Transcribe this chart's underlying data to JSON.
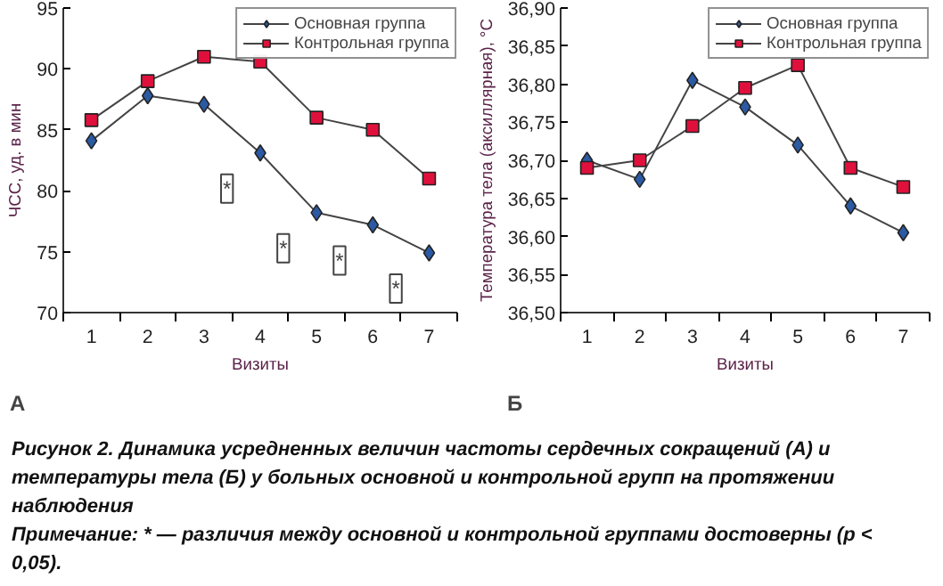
{
  "chart_data": [
    {
      "type": "line",
      "title": "А",
      "xlabel": "Визиты",
      "ylabel": "ЧСС, уд. в мин",
      "categories": [
        "1",
        "2",
        "3",
        "4",
        "5",
        "6",
        "7"
      ],
      "ylim": [
        70,
        95
      ],
      "yticks": [
        70,
        75,
        80,
        85,
        90,
        95
      ],
      "grid": false,
      "legend": "top right",
      "series": [
        {
          "name": "Основная группа",
          "color": "#2b5aa3",
          "marker": "diamond",
          "values": [
            84.1,
            87.8,
            87.1,
            83.1,
            78.2,
            77.2,
            74.9
          ]
        },
        {
          "name": "Контрольная группа",
          "color": "#e0103c",
          "marker": "square",
          "values": [
            85.8,
            89.0,
            91.0,
            90.6,
            86.0,
            85.0,
            81.0
          ]
        }
      ],
      "annotations": [
        {
          "text": "*",
          "x": "4",
          "y": 83.1
        },
        {
          "text": "*",
          "x": "5",
          "y": 78.2
        },
        {
          "text": "*",
          "x": "6",
          "y": 77.2
        },
        {
          "text": "*",
          "x": "7",
          "y": 74.9
        }
      ]
    },
    {
      "type": "line",
      "title": "Б",
      "xlabel": "Визиты",
      "ylabel": "Температура тела (аксиллярная), °С",
      "categories": [
        "1",
        "2",
        "3",
        "4",
        "5",
        "6",
        "7"
      ],
      "ylim": [
        36.5,
        36.9
      ],
      "yticks": [
        {
          "value": 36.5,
          "label": "36,50"
        },
        {
          "value": 36.55,
          "label": "36,55"
        },
        {
          "value": 36.6,
          "label": "36,60"
        },
        {
          "value": 36.65,
          "label": "36,65"
        },
        {
          "value": 36.7,
          "label": "36,70"
        },
        {
          "value": 36.75,
          "label": "36,75"
        },
        {
          "value": 36.8,
          "label": "36,80"
        },
        {
          "value": 36.85,
          "label": "36,85"
        },
        {
          "value": 36.9,
          "label": "36,90"
        }
      ],
      "grid": false,
      "legend": "top right",
      "series": [
        {
          "name": "Основная группа",
          "color": "#2b5aa3",
          "marker": "diamond",
          "values": [
            36.7,
            36.675,
            36.805,
            36.77,
            36.72,
            36.64,
            36.605
          ]
        },
        {
          "name": "Контрольная группа",
          "color": "#e0103c",
          "marker": "square",
          "values": [
            36.69,
            36.7,
            36.745,
            36.795,
            36.825,
            36.69,
            36.665
          ]
        }
      ],
      "annotations": [
        "Рисунок 2. Динамика усредненных величин частоты сердечных сокращений (А) и температуры тела (Б) у больных основной и контрольной групп на протяжении наблюдения",
        "Примечание: * — различия между основной и контрольной группами достоверны (p < 0,05)."
      ]
    }
  ]
}
